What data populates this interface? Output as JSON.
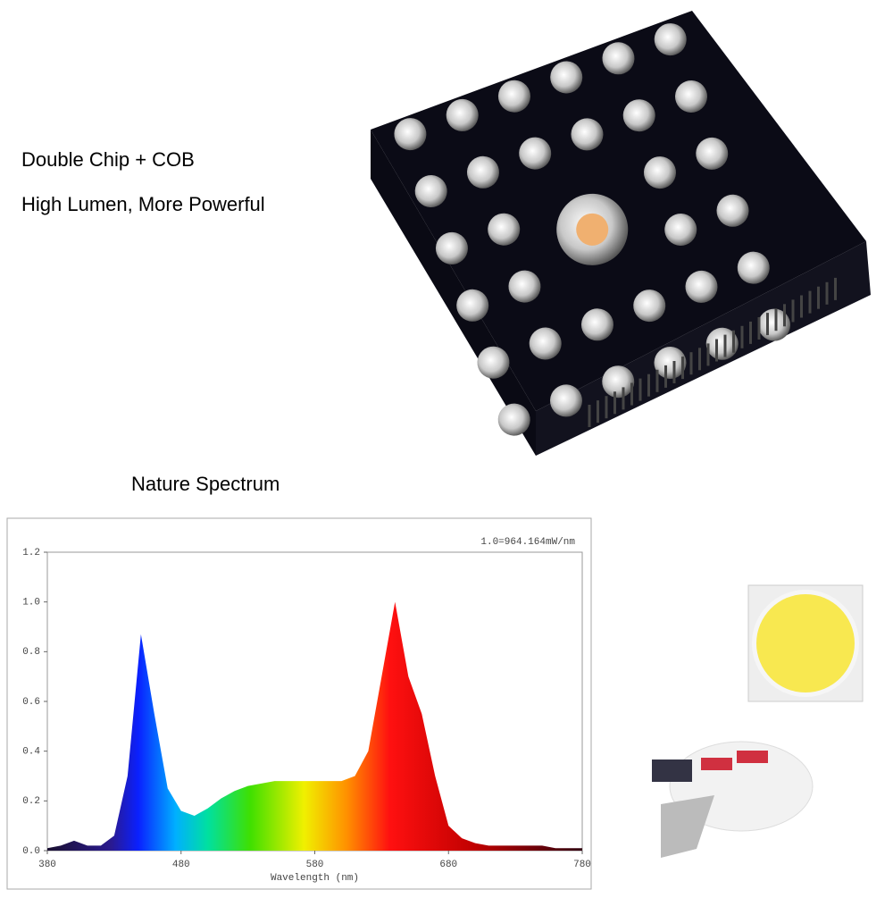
{
  "header": {
    "line1": "Double Chip + COB",
    "line2": "High Lumen, More Powerful",
    "spectrum_title": "Nature Spectrum"
  },
  "chart_data": {
    "type": "area",
    "annotation": "1.0=964.164mW/nm",
    "xlabel": "Wavelength (nm)",
    "x": [
      380,
      390,
      400,
      410,
      420,
      430,
      440,
      450,
      460,
      470,
      480,
      490,
      500,
      510,
      520,
      530,
      540,
      550,
      560,
      570,
      580,
      590,
      600,
      610,
      620,
      630,
      640,
      650,
      660,
      670,
      680,
      690,
      700,
      710,
      720,
      730,
      740,
      750,
      760,
      770,
      780
    ],
    "values": [
      0.01,
      0.02,
      0.04,
      0.02,
      0.02,
      0.06,
      0.3,
      0.87,
      0.55,
      0.25,
      0.16,
      0.14,
      0.17,
      0.21,
      0.24,
      0.26,
      0.27,
      0.28,
      0.28,
      0.28,
      0.28,
      0.28,
      0.28,
      0.3,
      0.4,
      0.7,
      1.0,
      0.7,
      0.55,
      0.3,
      0.1,
      0.05,
      0.03,
      0.02,
      0.02,
      0.02,
      0.02,
      0.02,
      0.01,
      0.01,
      0.01
    ],
    "xlim": [
      380,
      780
    ],
    "xticks": [
      380,
      480,
      580,
      680,
      780
    ],
    "ylim": [
      0,
      1.2
    ],
    "yticks": [
      {
        "value": 0,
        "label": "0.0"
      },
      0.2,
      0.4,
      0.6,
      0.8,
      {
        "value": 1,
        "label": "1.0"
      },
      1.2
    ]
  }
}
